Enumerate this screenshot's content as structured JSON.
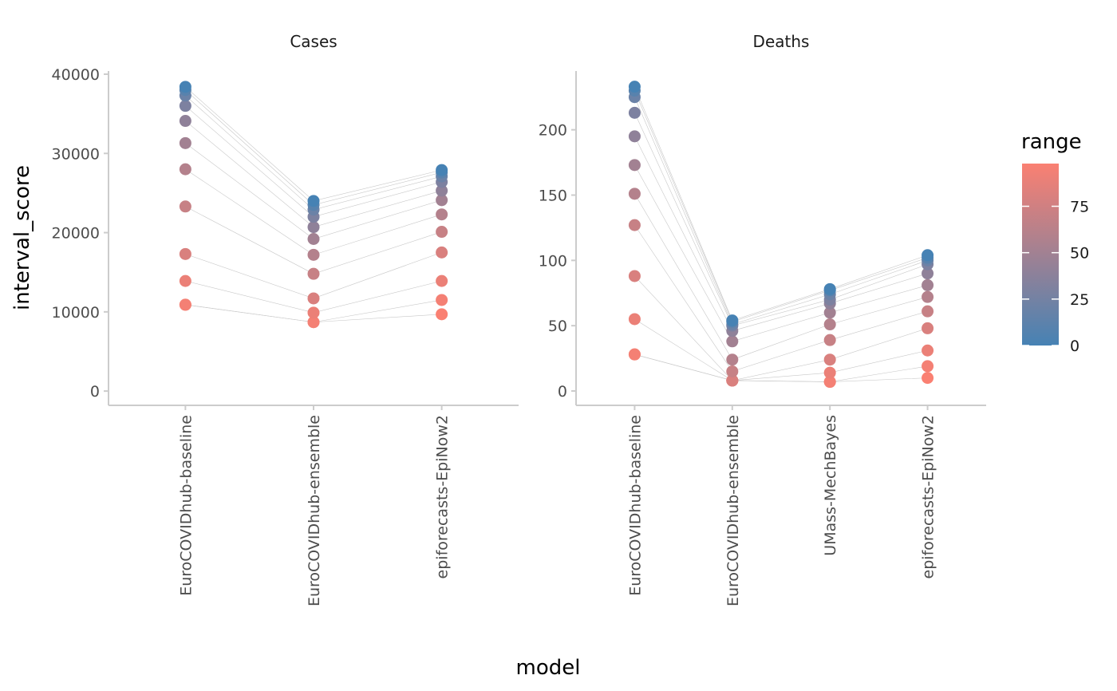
{
  "chart_data": {
    "type": "scatter",
    "y_axis_label": "interval_score",
    "x_axis_label": "model",
    "ranges": [
      0,
      10,
      20,
      30,
      40,
      50,
      60,
      70,
      80,
      90,
      95,
      98
    ],
    "legend": {
      "title": "range",
      "ticks": [
        "0",
        "25",
        "50",
        "75"
      ],
      "low_color": "#4682b4",
      "high_color": "#fa8072",
      "placement": "right"
    },
    "grid": false,
    "panels": [
      {
        "strip": "Cases",
        "ylim": [
          -1800,
          40400
        ],
        "y_ticks": [
          0,
          10000,
          20000,
          30000,
          40000
        ],
        "y_tick_labels": [
          "0",
          "10000",
          "20000",
          "30000",
          "40000"
        ],
        "categories": [
          "EuroCOVIDhub-baseline",
          "EuroCOVIDhub-ensemble",
          "epiforecasts-EpiNow2"
        ],
        "series": [
          {
            "model": "EuroCOVIDhub-baseline",
            "values": [
              38400,
              38000,
              37300,
              36000,
              34100,
              31300,
              28000,
              23300,
              17300,
              13900,
              10900,
              10900
            ]
          },
          {
            "model": "EuroCOVIDhub-ensemble",
            "values": [
              24000,
              23500,
              22900,
              22000,
              20700,
              19200,
              17200,
              14800,
              11700,
              9900,
              8700,
              8700
            ]
          },
          {
            "model": "epiforecasts-EpiNow2",
            "values": [
              27900,
              27600,
              27100,
              26400,
              25300,
              24100,
              22300,
              20100,
              17500,
              13900,
              11500,
              9700
            ]
          }
        ]
      },
      {
        "strip": "Deaths",
        "ylim": [
          -11,
          245
        ],
        "y_ticks": [
          0,
          50,
          100,
          150,
          200
        ],
        "y_tick_labels": [
          "0",
          "50",
          "100",
          "150",
          "200"
        ],
        "categories": [
          "EuroCOVIDhub-baseline",
          "EuroCOVIDhub-ensemble",
          "UMass-MechBayes",
          "epiforecasts-EpiNow2"
        ],
        "series": [
          {
            "model": "EuroCOVIDhub-baseline",
            "values": [
              233,
              230,
              225,
              213,
              195,
              173,
              151,
              127,
              88,
              55,
              28,
              28
            ]
          },
          {
            "model": "EuroCOVIDhub-ensemble",
            "values": [
              54,
              53,
              51,
              50,
              46,
              38,
              24,
              15,
              8,
              8,
              8,
              8
            ]
          },
          {
            "model": "UMass-MechBayes",
            "values": [
              78,
              77,
              74,
              70,
              67,
              60,
              51,
              39,
              24,
              14,
              7,
              7
            ]
          },
          {
            "model": "epiforecasts-EpiNow2",
            "values": [
              104,
              102,
              100,
              97,
              90,
              81,
              72,
              61,
              48,
              31,
              19,
              10
            ]
          }
        ]
      }
    ]
  }
}
